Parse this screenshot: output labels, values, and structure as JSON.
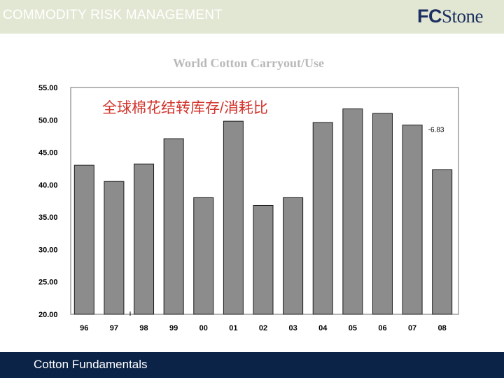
{
  "header": {
    "title": "COMMODITY RISK MANAGEMENT",
    "logo_fc": "FC",
    "logo_stone": "Stone"
  },
  "footer": {
    "label": "Cotton Fundamentals"
  },
  "colors": {
    "bar": "#8c8c8c",
    "header_bg": "#e2e7d3",
    "footer_bg": "#0c2348",
    "subtitle": "#d2322a",
    "logo": "#1c2f60"
  },
  "chart_data": {
    "type": "bar",
    "title": "World Cotton Carryout/Use",
    "subtitle": "全球棉花结转库存/消耗比",
    "categories": [
      "96",
      "97",
      "98",
      "99",
      "00",
      "01",
      "02",
      "03",
      "04",
      "05",
      "06",
      "07",
      "08"
    ],
    "values": [
      43.0,
      40.5,
      43.2,
      47.1,
      38.0,
      49.8,
      36.8,
      38.0,
      49.6,
      51.7,
      51.0,
      49.2,
      42.3
    ],
    "ylim": [
      20,
      55
    ],
    "yticks": [
      "20.00",
      "25.00",
      "30.00",
      "35.00",
      "40.00",
      "45.00",
      "50.00",
      "55.00"
    ],
    "annotation": {
      "text": "-6.83",
      "category": "07"
    },
    "xlabel": "",
    "ylabel": ""
  }
}
